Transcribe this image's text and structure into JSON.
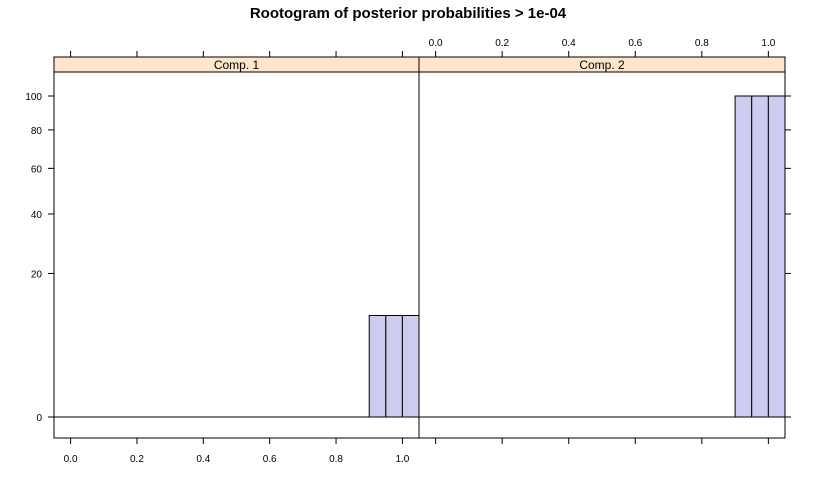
{
  "chart_data": {
    "type": "bar",
    "title": "Rootogram of posterior probabilities > 1e-04",
    "xlabel": "",
    "ylabel": "",
    "y_scale": "sqrt",
    "xlim": [
      -0.05,
      1.05
    ],
    "ylim": [
      0,
      100
    ],
    "x_ticks": [
      0.0,
      0.2,
      0.4,
      0.6,
      0.8,
      1.0
    ],
    "x_tick_labels": [
      "0.0",
      "0.2",
      "0.4",
      "0.6",
      "0.8",
      "1.0"
    ],
    "y_ticks": [
      0,
      20,
      40,
      60,
      80,
      100
    ],
    "y_tick_labels": [
      "0",
      "20",
      "40",
      "60",
      "80",
      "100"
    ],
    "bin_edges": [
      -0.05,
      0.0,
      0.05,
      0.1,
      0.15,
      0.2,
      0.25,
      0.3,
      0.35,
      0.4,
      0.45,
      0.5,
      0.55,
      0.6,
      0.65,
      0.7,
      0.75,
      0.8,
      0.85,
      0.9,
      0.95,
      1.0,
      1.05
    ],
    "bar_fill": "#ccccf0",
    "strip_fill": "#ffe5cc",
    "panels": [
      {
        "strip": "Comp. 1",
        "bins": [
          [
            0.9,
            1.05,
            10
          ]
        ]
      },
      {
        "strip": "Comp. 2",
        "bins": [
          [
            0.9,
            1.05,
            100
          ]
        ]
      }
    ]
  }
}
